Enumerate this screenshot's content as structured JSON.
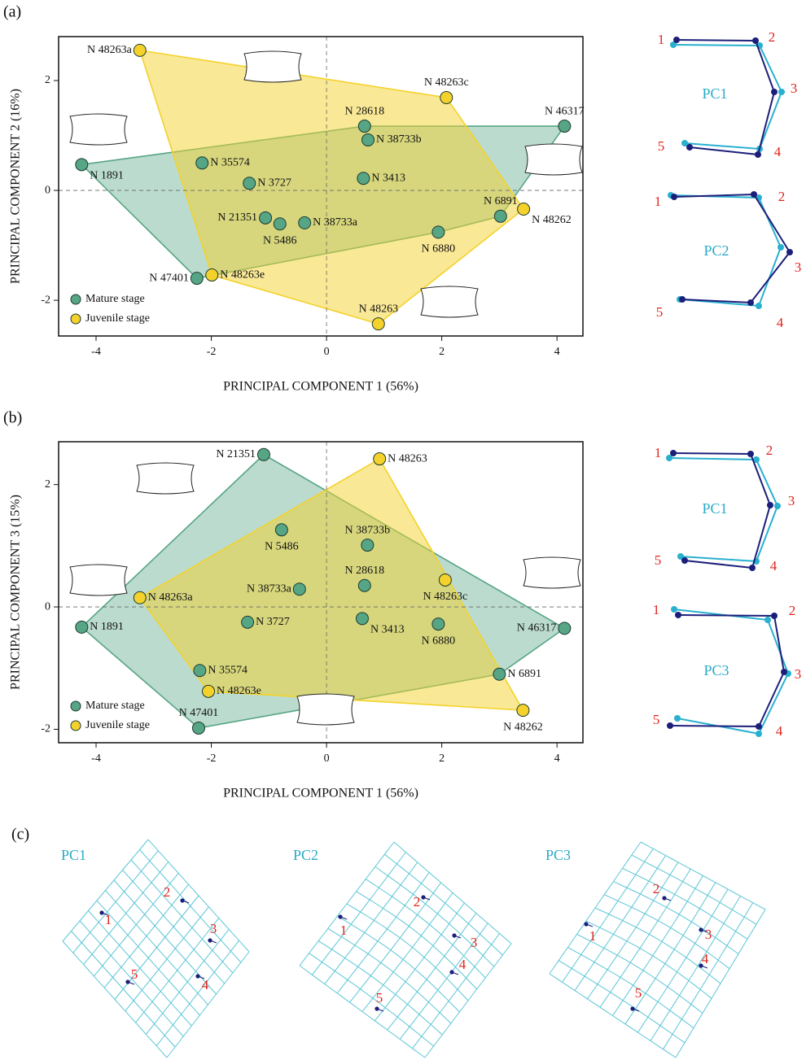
{
  "panel_labels": [
    "(a)",
    "(b)",
    "(c)"
  ],
  "chart_data": [
    {
      "type": "scatter",
      "xlabel": "PRINCIPAL COMPONENT 1 (56%)",
      "ylabel": "PRINCIPAL COMPONENT 2 (16%)",
      "xlim": [
        -4.65,
        4.45
      ],
      "ylim": [
        -2.65,
        2.8
      ],
      "xticks": [
        -4,
        -2,
        0,
        2,
        4
      ],
      "yticks": [
        -2,
        0,
        2
      ],
      "legend": "lower left",
      "convex_hull": true,
      "series": [
        {
          "name": "Mature stage",
          "color": "#56a585",
          "labels": [
            "N 1891",
            "N 35574",
            "N 3727",
            "N 21351",
            "N 5486",
            "N 38733a",
            "N 28618",
            "N 38733b",
            "N 3413",
            "N 6880",
            "N 6891",
            "N 46317",
            "N 47401"
          ],
          "x": [
            -4.25,
            -2.16,
            -1.34,
            -1.06,
            -0.81,
            -0.38,
            0.66,
            0.72,
            0.64,
            1.94,
            3.02,
            4.13,
            -2.25
          ],
          "values": [
            0.47,
            0.5,
            0.13,
            -0.5,
            -0.61,
            -0.59,
            1.17,
            0.92,
            0.22,
            -0.76,
            -0.47,
            1.17,
            -1.6
          ]
        },
        {
          "name": "Juvenile stage",
          "color": "#f4d22b",
          "labels": [
            "N 48263a",
            "N 48263c",
            "N 48262",
            "N 48263e",
            "N 48263"
          ],
          "x": [
            -3.24,
            2.08,
            3.42,
            -1.99,
            0.9
          ],
          "values": [
            2.55,
            1.69,
            -0.34,
            -1.54,
            -2.43
          ]
        }
      ]
    },
    {
      "type": "scatter",
      "xlabel": "PRINCIPAL COMPONENT 1 (56%)",
      "ylabel": "PRINCIPAL COMPONENT 3 (15%)",
      "xlim": [
        -4.65,
        4.45
      ],
      "ylim": [
        -2.22,
        2.7
      ],
      "xticks": [
        -4,
        -2,
        0,
        2,
        4
      ],
      "yticks": [
        -2,
        0,
        2
      ],
      "legend": "lower left",
      "convex_hull": true,
      "series": [
        {
          "name": "Mature stage",
          "color": "#56a585",
          "labels": [
            "N 21351",
            "N 5486",
            "N 38733b",
            "N 28618",
            "N 38733a",
            "N 1891",
            "N 3727",
            "N 3413",
            "N 6880",
            "N 46317",
            "N 35574",
            "N 6891",
            "N 47401"
          ],
          "x": [
            -1.09,
            -0.78,
            0.71,
            0.66,
            -0.47,
            -4.25,
            -1.37,
            0.62,
            1.94,
            4.13,
            -2.2,
            3.0,
            -2.22
          ],
          "values": [
            2.49,
            1.26,
            1.01,
            0.35,
            0.29,
            -0.33,
            -0.25,
            -0.19,
            -0.28,
            -0.35,
            -1.04,
            -1.1,
            -1.98
          ]
        },
        {
          "name": "Juvenile stage",
          "color": "#f4d22b",
          "labels": [
            "N 48263",
            "N 48263a",
            "N 48263c",
            "N 48263e",
            "N 48262"
          ],
          "x": [
            0.92,
            -3.24,
            2.06,
            -2.05,
            3.41
          ],
          "values": [
            2.42,
            0.15,
            0.44,
            -1.38,
            -1.69
          ]
        }
      ]
    }
  ],
  "landmark_plots": [
    {
      "title": "PC1",
      "landmarks": [
        "1",
        "2",
        "3",
        "4",
        "5"
      ]
    },
    {
      "title": "PC2",
      "landmarks": [
        "1",
        "2",
        "3",
        "4",
        "5"
      ]
    },
    {
      "title": "PC1",
      "landmarks": [
        "1",
        "2",
        "3",
        "4",
        "5"
      ]
    },
    {
      "title": "PC3",
      "landmarks": [
        "1",
        "2",
        "3",
        "4",
        "5"
      ]
    }
  ],
  "deformation_grids": [
    {
      "title": "PC1",
      "landmarks": [
        "1",
        "2",
        "3",
        "4",
        "5"
      ]
    },
    {
      "title": "PC2",
      "landmarks": [
        "1",
        "2",
        "3",
        "4",
        "5"
      ]
    },
    {
      "title": "PC3",
      "landmarks": [
        "1",
        "2",
        "3",
        "4",
        "5"
      ]
    }
  ]
}
